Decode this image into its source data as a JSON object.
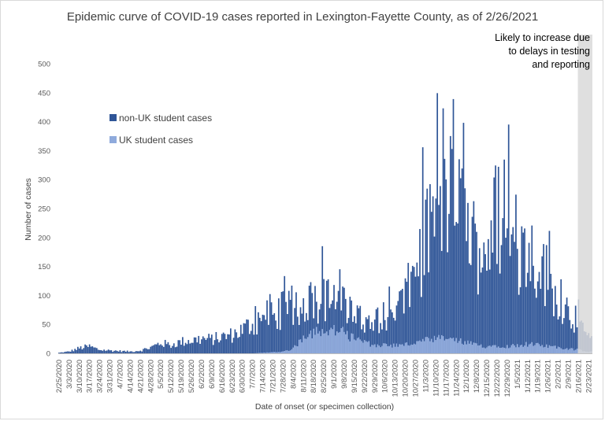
{
  "chart_data": {
    "type": "bar",
    "stacked": true,
    "title": "Epidemic curve of COVID-19 cases reported in Lexington-Fayette County, as of 2/26/2021",
    "xlabel": "Date of onset (or specimen collection)",
    "ylabel": "Number of cases",
    "ylim": [
      0,
      500
    ],
    "yticks": [
      0,
      50,
      100,
      150,
      200,
      250,
      300,
      350,
      400,
      450,
      500
    ],
    "x_start": "2/25/2020",
    "x_end": "2/25/2021",
    "xtick_labels": [
      "2/25/2020",
      "3/3/2020",
      "3/10/2020",
      "3/17/2020",
      "3/24/2020",
      "3/31/2020",
      "4/7/2020",
      "4/14/2020",
      "4/21/2020",
      "4/28/2020",
      "5/5/2020",
      "5/12/2020",
      "5/19/2020",
      "5/26/2020",
      "6/2/2020",
      "6/9/2020",
      "6/16/2020",
      "6/23/2020",
      "6/30/2020",
      "7/7/2020",
      "7/14/2020",
      "7/21/2020",
      "7/28/2020",
      "8/4/2020",
      "8/11/2020",
      "8/18/2020",
      "8/25/2020",
      "9/1/2020",
      "9/8/2020",
      "9/15/2020",
      "9/22/2020",
      "9/29/2020",
      "10/6/2020",
      "10/13/2020",
      "10/20/2020",
      "10/27/2020",
      "11/3/2020",
      "11/10/2020",
      "11/17/2020",
      "11/24/2020",
      "12/1/2020",
      "12/8/2020",
      "12/15/2020",
      "12/22/2020",
      "12/29/2020",
      "1/5/2021",
      "1/12/2021",
      "1/19/2021",
      "1/26/2021",
      "2/2/2021",
      "2/9/2021",
      "2/16/2021",
      "2/23/2021"
    ],
    "weekly_levels": {
      "non_uk_total": [
        1,
        3,
        9,
        12,
        6,
        5,
        4,
        3,
        5,
        10,
        18,
        14,
        20,
        22,
        25,
        24,
        28,
        32,
        40,
        52,
        60,
        68,
        75,
        82,
        88,
        90,
        92,
        88,
        80,
        72,
        62,
        60,
        62,
        75,
        95,
        140,
        200,
        240,
        280,
        260,
        220,
        180,
        190,
        240,
        200,
        185,
        175,
        160,
        130,
        100,
        75,
        55,
        25
      ],
      "uk_student": [
        0,
        0,
        0,
        0,
        0,
        0,
        0,
        0,
        0,
        0,
        0,
        0,
        0,
        0,
        0,
        0,
        0,
        0,
        0,
        0,
        1,
        2,
        3,
        8,
        28,
        38,
        42,
        40,
        35,
        25,
        18,
        15,
        14,
        14,
        15,
        18,
        22,
        24,
        26,
        22,
        18,
        14,
        12,
        14,
        12,
        14,
        16,
        14,
        12,
        10,
        8,
        6,
        3
      ]
    },
    "peaks": [
      {
        "date": "8/24/2020",
        "value": 185
      },
      {
        "date": "11/15/2020",
        "value": 423
      },
      {
        "date": "11/22/2020",
        "value": 439
      },
      {
        "date": "11/29/2020",
        "value": 398
      },
      {
        "date": "12/30/2020",
        "value": 395
      },
      {
        "date": "1/4/2021",
        "value": 274
      }
    ],
    "series": [
      {
        "name": "non-UK student cases",
        "color": "#2f5597"
      },
      {
        "name": "UK student cases",
        "color": "#8faadc"
      }
    ],
    "shaded_region": {
      "from": "2/16/2021",
      "to": "2/25/2021",
      "color": "#d9d9d9",
      "label": "Likely to increase due to delays in testing and reporting"
    },
    "grid": false,
    "legend_position": "center-left"
  }
}
